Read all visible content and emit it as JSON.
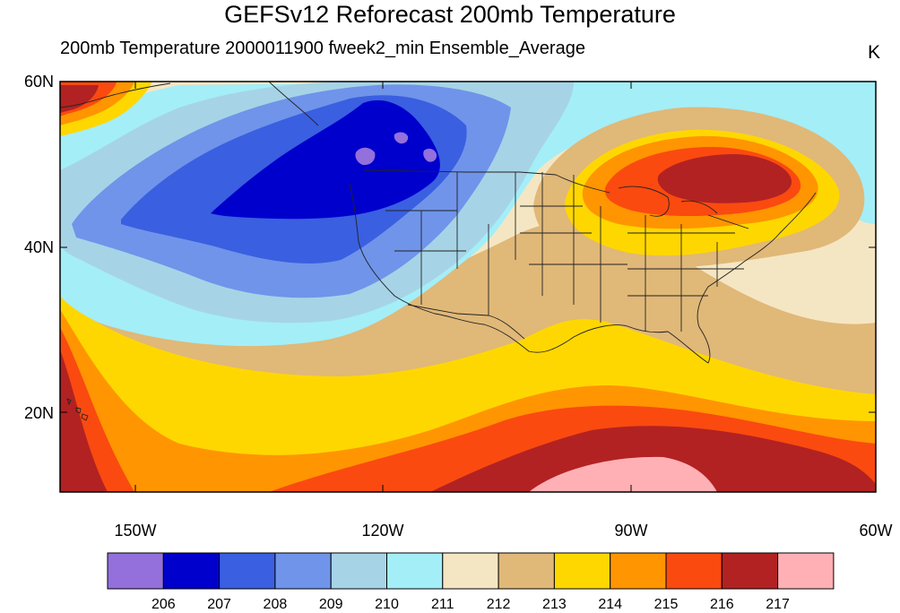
{
  "title": "GEFSv12 Reforecast 200mb Temperature",
  "subtitle": "200mb Temperature  2000011900 fweek2_min Ensemble_Average",
  "units": "K",
  "lat_labels": [
    "60N",
    "40N",
    "20N"
  ],
  "lon_labels": [
    "150W",
    "120W",
    "90W",
    "60W"
  ],
  "colorbar": {
    "labels": [
      "206",
      "207",
      "208",
      "209",
      "210",
      "211",
      "212",
      "213",
      "214",
      "215",
      "216",
      "217"
    ],
    "colors": [
      "#9370db",
      "#0000cd",
      "#3a5fe0",
      "#6f94ea",
      "#a6d4e6",
      "#a4eef8",
      "#f5e6c3",
      "#e0b878",
      "#ffd700",
      "#ff9500",
      "#fa4a10",
      "#b22222",
      "#ffb0b5"
    ]
  }
}
